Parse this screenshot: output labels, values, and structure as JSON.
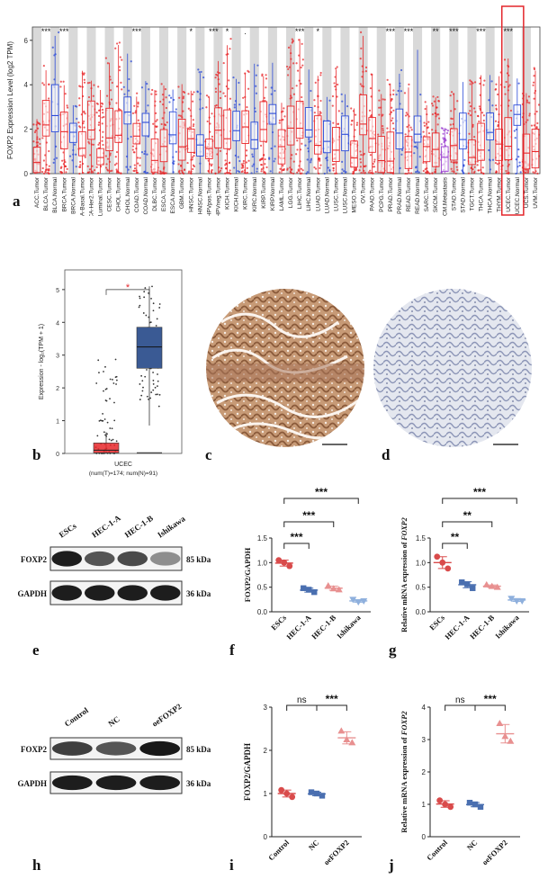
{
  "panel_labels": {
    "a": "a",
    "b": "b",
    "c": "c",
    "d": "d",
    "e": "e",
    "f": "f",
    "g": "g",
    "h": "h",
    "i": "i",
    "j": "j"
  },
  "panel_a": {
    "ylabel": "FOXP2 Expression Level (log2 TPM)",
    "yticks": [
      "0",
      "2",
      "4",
      "6"
    ],
    "categories": [
      "ACC.Tumor",
      "BLCA.Tumor",
      "BLCA.Normal",
      "BRCA.Tumor",
      "BRCA.Normal",
      "BRCA-Basal.Tumor",
      "BRCA-Her2.Tumor",
      "BRCA-Luminal.Tumor",
      "CESC.Tumor",
      "CHOL.Tumor",
      "CHOL.Normal",
      "COAD.Tumor",
      "COAD.Normal",
      "DLBC.Tumor",
      "ESCA.Tumor",
      "ESCA.Normal",
      "GBM.Tumor",
      "HNSC.Tumor",
      "HNSC.Normal",
      "HNSC-HPVpos.Tumor",
      "HNSC-HPVneg.Tumor",
      "KICH.Tumor",
      "KICH.Normal",
      "KIRC.Tumor",
      "KIRC.Normal",
      "KIRP.Tumor",
      "KIRP.Normal",
      "LAML.Tumor",
      "LGG.Tumor",
      "LIHC.Tumor",
      "LIHC.Normal",
      "LUAD.Tumor",
      "LUAD.Normal",
      "LUSC.Tumor",
      "LUSC.Normal",
      "MESO.Tumor",
      "OV.Tumor",
      "PAAD.Tumor",
      "PCPG.Tumor",
      "PRAD.Tumor",
      "PRAD.Normal",
      "READ.Tumor",
      "READ.Normal",
      "SARC.Tumor",
      "SKCM.Tumor",
      "SKCM.Metastasis",
      "STAD.Tumor",
      "STAD.Normal",
      "TGCT.Tumor",
      "THCA.Tumor",
      "THCA.Normal",
      "THYM.Tumor",
      "UCEC.Tumor",
      "UCEC.Normal",
      "UCS.Tumor",
      "UVM.Tumor"
    ],
    "significance": [
      {
        "at": 1.5,
        "label": "***"
      },
      {
        "at": 3.5,
        "label": "***"
      },
      {
        "at": 11.5,
        "label": "***"
      },
      {
        "at": 17.5,
        "label": "*"
      },
      {
        "at": 20,
        "label": "***"
      },
      {
        "at": 21.5,
        "label": "*"
      },
      {
        "at": 23.5,
        "label": "."
      },
      {
        "at": 29.5,
        "label": "***"
      },
      {
        "at": 31.5,
        "label": "*"
      },
      {
        "at": 39.5,
        "label": "***"
      },
      {
        "at": 41.5,
        "label": "***"
      },
      {
        "at": 44.5,
        "label": "**"
      },
      {
        "at": 46.5,
        "label": "***"
      },
      {
        "at": 49.5,
        "label": "***"
      },
      {
        "at": 52.5,
        "label": "***"
      }
    ]
  },
  "panel_b": {
    "ylabel": "Expression - log₂(TPM + 1)",
    "yticks": [
      "0",
      "1",
      "2",
      "3",
      "4",
      "5"
    ],
    "significance": "*",
    "xlabel": "UCEC",
    "xsub": "(num(T)=174; num(N)=91)"
  },
  "panel_e": {
    "lanes": [
      "ESCs",
      "HEC-1-A",
      "HEC-1-B",
      "Ishikawa"
    ],
    "rows": [
      {
        "label": "FOXP2",
        "kda": "85 kDa"
      },
      {
        "label": "GAPDH",
        "kda": "36 kDa"
      }
    ]
  },
  "panel_f": {
    "chart_data": {
      "type": "scatter",
      "ylabel": "FOXP2/GAPDH",
      "ylim": [
        0.0,
        1.5
      ],
      "yticks": [
        "0.0",
        "0.5",
        "1.0",
        "1.5"
      ],
      "categories": [
        "ESCs",
        "HEC-1-A",
        "HEC-1-B",
        "Ishikawa"
      ],
      "points": [
        [
          1.05,
          0.93,
          1.0
        ],
        [
          0.48,
          0.4,
          0.45
        ],
        [
          0.53,
          0.45,
          0.47
        ],
        [
          0.25,
          0.22,
          0.2
        ]
      ],
      "means": [
        0.99,
        0.44,
        0.48,
        0.22
      ],
      "comparisons": [
        {
          "from": 0,
          "to": 1,
          "label": "***"
        },
        {
          "from": 0,
          "to": 2,
          "label": "***"
        },
        {
          "from": 0,
          "to": 3,
          "label": "***"
        }
      ]
    }
  },
  "panel_g": {
    "chart_data": {
      "type": "scatter",
      "ylabel": "Relative mRNA expression of FOXP2",
      "ylabel_plain": "Relative mRNA expression of ",
      "ylabel_italic": "FOXP2",
      "ylim": [
        0.0,
        1.5
      ],
      "yticks": [
        "0.0",
        "0.5",
        "1.0",
        "1.5"
      ],
      "categories": [
        "ESCs",
        "HEC-1-A",
        "HEC-1-B",
        "Ishikawa"
      ],
      "points": [
        [
          1.12,
          0.88,
          1.0
        ],
        [
          0.6,
          0.48,
          0.56
        ],
        [
          0.55,
          0.5,
          0.52
        ],
        [
          0.27,
          0.22,
          0.22
        ]
      ],
      "means": [
        1.0,
        0.55,
        0.52,
        0.24
      ],
      "comparisons": [
        {
          "from": 0,
          "to": 1,
          "label": "**"
        },
        {
          "from": 0,
          "to": 2,
          "label": "**"
        },
        {
          "from": 0,
          "to": 3,
          "label": "***"
        }
      ]
    }
  },
  "panel_h": {
    "lanes": [
      "Control",
      "NC",
      "oeFOXP2"
    ],
    "rows": [
      {
        "label": "FOXP2",
        "kda": "85 kDa"
      },
      {
        "label": "GAPDH",
        "kda": "36 kDa"
      }
    ]
  },
  "panel_i": {
    "chart_data": {
      "type": "scatter",
      "ylabel": "FOXP2/GAPDH",
      "ylim": [
        0,
        3
      ],
      "yticks": [
        "0",
        "1",
        "2",
        "3"
      ],
      "categories": [
        "Control",
        "NC",
        "oeFOXP2"
      ],
      "points": [
        [
          1.08,
          0.92,
          1.0
        ],
        [
          1.03,
          0.95,
          1.0
        ],
        [
          2.45,
          2.18,
          2.25
        ]
      ],
      "means": [
        1.0,
        0.99,
        2.29
      ],
      "comparisons": [
        {
          "from": 0,
          "to": 1,
          "label": "ns"
        },
        {
          "from": 1,
          "to": 2,
          "label": "***"
        }
      ]
    }
  },
  "panel_j": {
    "chart_data": {
      "type": "scatter",
      "ylabel": "Relative mRNA expression of FOXP2",
      "ylabel_plain": "Relative mRNA expression of ",
      "ylabel_italic": "FOXP2",
      "ylim": [
        0,
        4
      ],
      "yticks": [
        "0",
        "1",
        "2",
        "3",
        "4"
      ],
      "categories": [
        "Control",
        "NC",
        "oeFOXP2"
      ],
      "points": [
        [
          1.12,
          0.92,
          1.0
        ],
        [
          1.05,
          0.92,
          1.0
        ],
        [
          3.5,
          2.95,
          3.1
        ]
      ],
      "means": [
        1.01,
        0.99,
        3.18
      ],
      "comparisons": [
        {
          "from": 0,
          "to": 1,
          "label": "ns"
        },
        {
          "from": 1,
          "to": 2,
          "label": "***"
        }
      ]
    }
  },
  "colors": {
    "tumor": "#e8272a",
    "normal": "#2b4ad8",
    "metastasis": "#9b3fd0",
    "grey_band": "#d9d9d9",
    "highlight": "#e4262b",
    "dot_red": "#d94b4b",
    "dot_blue": "#4a6fb0",
    "dot_pink": "#e89090",
    "dot_lblue": "#8fb0dd",
    "tcga_box": "#3a5a94"
  }
}
